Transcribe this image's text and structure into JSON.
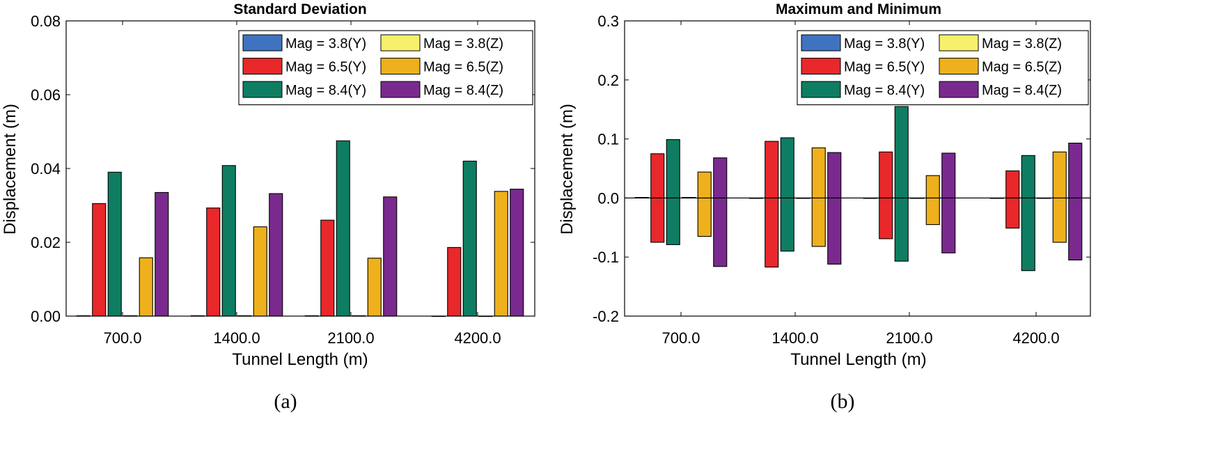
{
  "colors": {
    "mag38y": "#3f73c0",
    "mag38z": "#f6f06c",
    "mag65y": "#e8282a",
    "mag65z": "#eeb01c",
    "mag84y": "#0e7d62",
    "mag84z": "#7a2a8e"
  },
  "chart_data": [
    {
      "type": "bar",
      "title": "Standard Deviation",
      "xlabel": "Tunnel Length (m)",
      "ylabel": "Displacement (m)",
      "categories": [
        "700.0",
        "1400.0",
        "2100.0",
        "4200.0"
      ],
      "ylim": [
        0,
        0.08
      ],
      "yticks": [
        "0.00",
        "0.02",
        "0.04",
        "0.06",
        "0.08"
      ],
      "legend_position": "top-right",
      "caption": "(a)",
      "series": [
        {
          "name": "Mag = 3.8(Y)",
          "color_key": "mag38y",
          "values": [
            0.0001,
            0.0001,
            0.0001,
            0
          ]
        },
        {
          "name": "Mag = 6.5(Y)",
          "color_key": "mag65y",
          "values": [
            0.0305,
            0.0293,
            0.026,
            0.0186
          ]
        },
        {
          "name": "Mag = 8.4(Y)",
          "color_key": "mag84y",
          "values": [
            0.039,
            0.0408,
            0.0475,
            0.042
          ]
        },
        {
          "name": "Mag = 3.8(Z)",
          "color_key": "mag38z",
          "values": [
            0.0001,
            0.0001,
            0.0001,
            0
          ]
        },
        {
          "name": "Mag = 6.5(Z)",
          "color_key": "mag65z",
          "values": [
            0.0158,
            0.0242,
            0.0157,
            0.0338
          ]
        },
        {
          "name": "Mag = 8.4(Z)",
          "color_key": "mag84z",
          "values": [
            0.0335,
            0.0332,
            0.0323,
            0.0344
          ]
        }
      ]
    },
    {
      "type": "bar",
      "title": "Maximum and Minimum",
      "xlabel": "Tunnel Length (m)",
      "ylabel": "Displacement (m)",
      "categories": [
        "700.0",
        "1400.0",
        "2100.0",
        "4200.0"
      ],
      "ylim": [
        -0.2,
        0.3
      ],
      "yticks": [
        "-0.2",
        "-0.1",
        "0.0",
        "0.1",
        "0.2",
        "0.3"
      ],
      "legend_position": "top-right",
      "caption": "(b)",
      "series": [
        {
          "name": "Mag = 3.8(Y)",
          "color_key": "mag38y",
          "max": [
            0.001,
            0,
            0,
            0
          ],
          "min": [
            0,
            0,
            0,
            0
          ]
        },
        {
          "name": "Mag = 6.5(Y)",
          "color_key": "mag65y",
          "max": [
            0.075,
            0.096,
            0.078,
            0.046
          ],
          "min": [
            -0.075,
            -0.117,
            -0.069,
            -0.051
          ]
        },
        {
          "name": "Mag = 8.4(Y)",
          "color_key": "mag84y",
          "max": [
            0.099,
            0.102,
            0.155,
            0.072
          ],
          "min": [
            -0.079,
            -0.09,
            -0.107,
            -0.123
          ]
        },
        {
          "name": "Mag = 3.8(Z)",
          "color_key": "mag38z",
          "max": [
            0.001,
            0,
            0,
            0
          ],
          "min": [
            0,
            0,
            0,
            0
          ]
        },
        {
          "name": "Mag = 6.5(Z)",
          "color_key": "mag65z",
          "max": [
            0.044,
            0.085,
            0.038,
            0.078
          ],
          "min": [
            -0.065,
            -0.082,
            -0.045,
            -0.075
          ]
        },
        {
          "name": "Mag = 8.4(Z)",
          "color_key": "mag84z",
          "max": [
            0.068,
            0.077,
            0.076,
            0.093
          ],
          "min": [
            -0.116,
            -0.112,
            -0.093,
            -0.105
          ]
        }
      ]
    }
  ]
}
